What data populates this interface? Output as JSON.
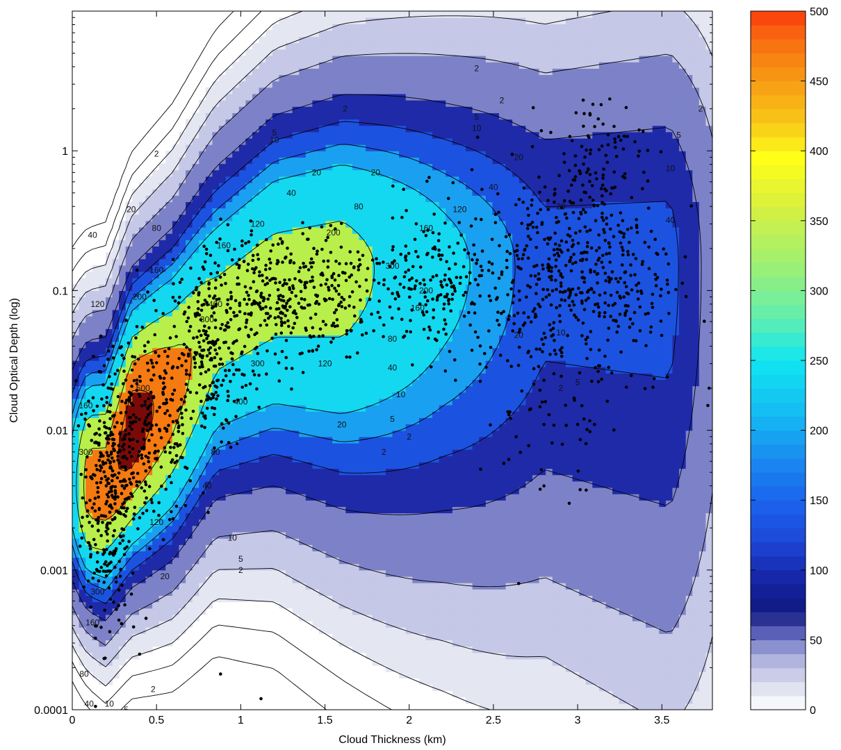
{
  "chart_data": {
    "type": "heatmap",
    "subtype": "filled-contour density with scatter overlay",
    "title": "",
    "xlabel": "Cloud Thickness (km)",
    "ylabel": "Cloud Optical Depth (log)",
    "x_scale": "linear",
    "y_scale": "log",
    "xlim": [
      0,
      3.8
    ],
    "ylim": [
      0.0001,
      10
    ],
    "x_ticks": [
      0,
      0.5,
      1,
      1.5,
      2,
      2.5,
      3,
      3.5
    ],
    "x_tick_labels": [
      "0",
      "0.5",
      "1",
      "1.5",
      "2",
      "2.5",
      "3",
      "3.5"
    ],
    "y_ticks": [
      0.0001,
      0.001,
      0.01,
      0.1,
      1
    ],
    "y_tick_labels": [
      "0.0001",
      "0.001",
      "0.01",
      "0.1",
      "1"
    ],
    "contour_levels": [
      2,
      5,
      10,
      20,
      40,
      80,
      120,
      160,
      200,
      300,
      400,
      500
    ],
    "contour_fill_colors": [
      "#ffffff",
      "#ffffff",
      "#ffffff",
      "#e4e6f2",
      "#c5c8e6",
      "#7d82c8",
      "#1e2aa8",
      "#1c52e0",
      "#1aa0f0",
      "#14d8f0",
      "#b8ef4a",
      "#f57a12",
      "#7a0a0a"
    ],
    "colorbar": {
      "min": 0,
      "max": 500,
      "ticks": [
        0,
        50,
        100,
        150,
        200,
        250,
        300,
        350,
        400,
        450,
        500
      ],
      "tick_labels": [
        "0",
        "50",
        "100",
        "150",
        "200",
        "250",
        "300",
        "350",
        "400",
        "450",
        "500"
      ]
    },
    "density_ridge": [
      {
        "x": 0.2,
        "y": 0.004,
        "level": 400
      },
      {
        "x": 0.35,
        "y": 0.01,
        "level": 500
      },
      {
        "x": 0.6,
        "y": 0.02,
        "level": 400
      },
      {
        "x": 0.85,
        "y": 0.06,
        "level": 300
      },
      {
        "x": 1.2,
        "y": 0.12,
        "level": 300
      },
      {
        "x": 1.6,
        "y": 0.14,
        "level": 300
      },
      {
        "x": 2.2,
        "y": 0.15,
        "level": 200
      },
      {
        "x": 2.8,
        "y": 0.15,
        "level": 120
      },
      {
        "x": 3.2,
        "y": 0.15,
        "level": 120
      }
    ],
    "contour_labels": [
      {
        "text": "2",
        "x": 1.62,
        "y": 2.0
      },
      {
        "text": "2",
        "x": 2.55,
        "y": 2.3
      },
      {
        "text": "2",
        "x": 2.4,
        "y": 3.9
      },
      {
        "text": "2",
        "x": 3.73,
        "y": 2.0
      },
      {
        "text": "2",
        "x": 0.5,
        "y": 0.95
      },
      {
        "text": "5",
        "x": 2.4,
        "y": 1.75
      },
      {
        "text": "5",
        "x": 1.2,
        "y": 1.35
      },
      {
        "text": "5",
        "x": 3.6,
        "y": 1.3
      },
      {
        "text": "10",
        "x": 2.4,
        "y": 1.45
      },
      {
        "text": "10",
        "x": 1.2,
        "y": 1.2
      },
      {
        "text": "10",
        "x": 3.55,
        "y": 0.75
      },
      {
        "text": "20",
        "x": 1.45,
        "y": 0.7
      },
      {
        "text": "20",
        "x": 1.8,
        "y": 0.7
      },
      {
        "text": "20",
        "x": 2.65,
        "y": 0.9
      },
      {
        "text": "20",
        "x": 0.35,
        "y": 0.38
      },
      {
        "text": "20",
        "x": 2.9,
        "y": 0.4
      },
      {
        "text": "40",
        "x": 1.3,
        "y": 0.5
      },
      {
        "text": "40",
        "x": 2.5,
        "y": 0.55
      },
      {
        "text": "40",
        "x": 0.12,
        "y": 0.25
      },
      {
        "text": "40",
        "x": 3.55,
        "y": 0.32
      },
      {
        "text": "80",
        "x": 1.7,
        "y": 0.4
      },
      {
        "text": "80",
        "x": 0.5,
        "y": 0.28
      },
      {
        "text": "120",
        "x": 1.1,
        "y": 0.3
      },
      {
        "text": "120",
        "x": 2.3,
        "y": 0.38
      },
      {
        "text": "160",
        "x": 2.1,
        "y": 0.28
      },
      {
        "text": "160",
        "x": 0.9,
        "y": 0.21
      },
      {
        "text": "160",
        "x": 0.5,
        "y": 0.14
      },
      {
        "text": "200",
        "x": 1.55,
        "y": 0.26
      },
      {
        "text": "200",
        "x": 0.4,
        "y": 0.09
      },
      {
        "text": "300",
        "x": 1.9,
        "y": 0.15
      },
      {
        "text": "300",
        "x": 0.8,
        "y": 0.062
      },
      {
        "text": "300",
        "x": 1.1,
        "y": 0.03
      },
      {
        "text": "400",
        "x": 0.85,
        "y": 0.08
      },
      {
        "text": "400",
        "x": 1.0,
        "y": 0.016
      },
      {
        "text": "300",
        "x": 0.08,
        "y": 0.007
      },
      {
        "text": "160",
        "x": 0.08,
        "y": 0.015
      },
      {
        "text": "120",
        "x": 0.15,
        "y": 0.08
      },
      {
        "text": "200",
        "x": 2.1,
        "y": 0.1
      },
      {
        "text": "160",
        "x": 2.05,
        "y": 0.075
      },
      {
        "text": "120",
        "x": 1.5,
        "y": 0.03
      },
      {
        "text": "80",
        "x": 1.9,
        "y": 0.045
      },
      {
        "text": "40",
        "x": 1.9,
        "y": 0.028
      },
      {
        "text": "20",
        "x": 2.65,
        "y": 0.048
      },
      {
        "text": "10",
        "x": 2.9,
        "y": 0.05
      },
      {
        "text": "10",
        "x": 1.95,
        "y": 0.018
      },
      {
        "text": "5",
        "x": 1.9,
        "y": 0.012
      },
      {
        "text": "2",
        "x": 2.0,
        "y": 0.009
      },
      {
        "text": "2",
        "x": 1.85,
        "y": 0.007
      },
      {
        "text": "2",
        "x": 2.9,
        "y": 0.02
      },
      {
        "text": "5",
        "x": 3.0,
        "y": 0.022
      },
      {
        "text": "20",
        "x": 1.6,
        "y": 0.011
      },
      {
        "text": "80",
        "x": 0.85,
        "y": 0.007
      },
      {
        "text": "40",
        "x": 0.8,
        "y": 0.004
      },
      {
        "text": "120",
        "x": 0.5,
        "y": 0.0022
      },
      {
        "text": "10",
        "x": 0.95,
        "y": 0.0017
      },
      {
        "text": "5",
        "x": 1.0,
        "y": 0.0012
      },
      {
        "text": "2",
        "x": 1.0,
        "y": 0.001
      },
      {
        "text": "20",
        "x": 0.55,
        "y": 0.0009
      },
      {
        "text": "300",
        "x": 0.15,
        "y": 0.0007
      },
      {
        "text": "160",
        "x": 0.12,
        "y": 0.00042
      },
      {
        "text": "80",
        "x": 0.07,
        "y": 0.00018
      },
      {
        "text": "40",
        "x": 0.1,
        "y": 0.00011
      },
      {
        "text": "10",
        "x": 0.22,
        "y": 0.00011
      },
      {
        "text": "5",
        "x": 0.32,
        "y": 0.0001
      },
      {
        "text": "2",
        "x": 0.48,
        "y": 0.00014
      },
      {
        "text": "500",
        "x": 0.42,
        "y": 0.02
      }
    ],
    "scatter": {
      "color": "#000000",
      "marker": "filled-circle",
      "clusters": [
        {
          "x_center": 0.22,
          "x_spread": 0.08,
          "logy_center": -2.45,
          "logy_spread": 0.45,
          "n": 320
        },
        {
          "x_center": 0.45,
          "x_spread": 0.15,
          "logy_center": -2.0,
          "logy_spread": 0.35,
          "n": 260
        },
        {
          "x_center": 0.8,
          "x_spread": 0.12,
          "logy_center": -1.45,
          "logy_spread": 0.35,
          "n": 240
        },
        {
          "x_center": 1.2,
          "x_spread": 0.2,
          "logy_center": -1.05,
          "logy_spread": 0.25,
          "n": 280
        },
        {
          "x_center": 1.65,
          "x_spread": 0.22,
          "logy_center": -1.0,
          "logy_spread": 0.2,
          "n": 140
        },
        {
          "x_center": 2.2,
          "x_spread": 0.2,
          "logy_center": -0.95,
          "logy_spread": 0.28,
          "n": 170
        },
        {
          "x_center": 2.75,
          "x_spread": 0.2,
          "logy_center": -0.9,
          "logy_spread": 0.35,
          "n": 200
        },
        {
          "x_center": 3.15,
          "x_spread": 0.22,
          "logy_center": -0.85,
          "logy_spread": 0.45,
          "n": 320
        },
        {
          "x_center": 3.1,
          "x_spread": 0.15,
          "logy_center": 0.0,
          "logy_spread": 0.2,
          "n": 70
        },
        {
          "x_center": 2.8,
          "x_spread": 0.2,
          "logy_center": -1.9,
          "logy_spread": 0.35,
          "n": 40
        }
      ],
      "outliers": [
        {
          "x": 2.65,
          "y": 0.0008
        },
        {
          "x": 2.95,
          "y": 0.003
        },
        {
          "x": 2.8,
          "y": 0.004
        },
        {
          "x": 0.88,
          "y": 0.00018
        },
        {
          "x": 1.12,
          "y": 0.00012
        },
        {
          "x": 3.78,
          "y": 0.02
        },
        {
          "x": 3.1,
          "y": 0.011
        },
        {
          "x": 2.8,
          "y": 0.011
        },
        {
          "x": 3.0,
          "y": 0.011
        }
      ]
    },
    "grid": false,
    "legend": "colorbar-right"
  }
}
